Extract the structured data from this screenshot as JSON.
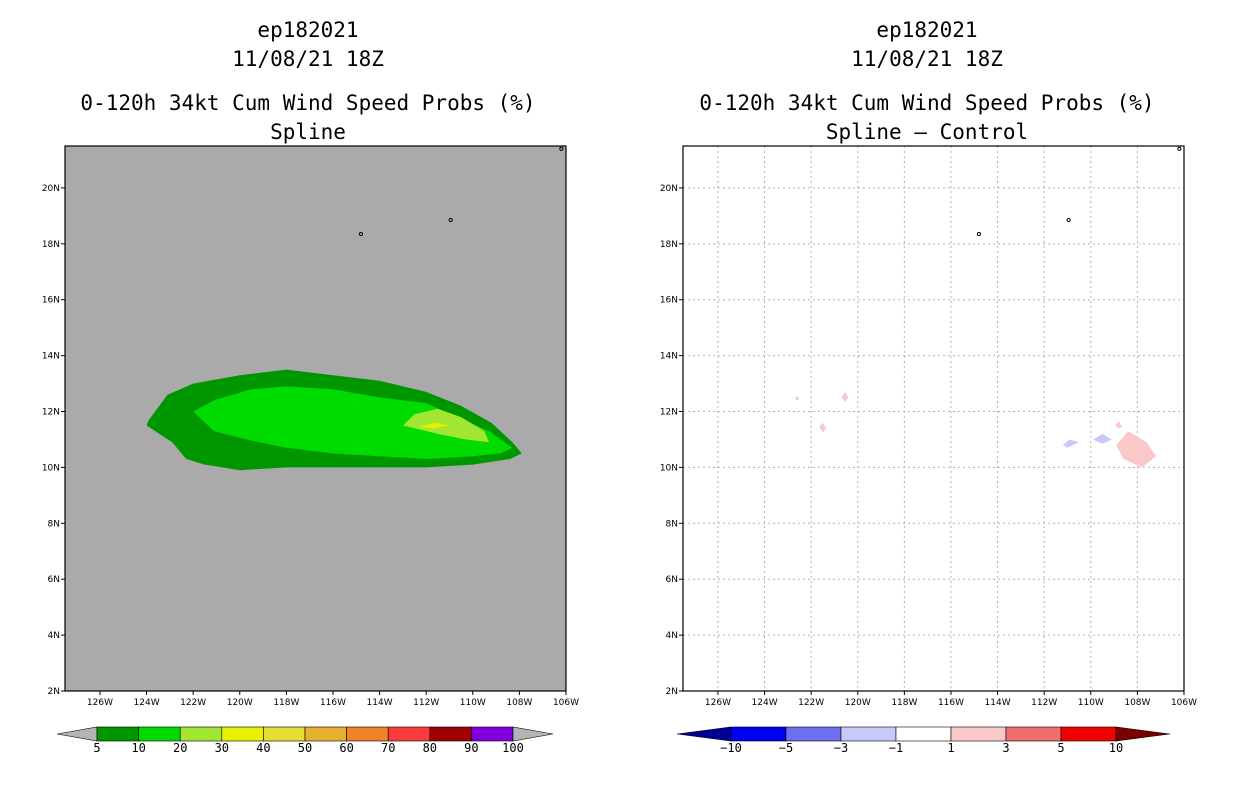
{
  "chart_data": [
    {
      "type": "contour",
      "storm_id": "ep182021",
      "date": "11/08/21 18Z",
      "title": "0-120h 34kt Cum Wind Speed Probs (%)",
      "subtitle": "Spline",
      "x_ticks": [
        "126W",
        "124W",
        "122W",
        "120W",
        "118W",
        "116W",
        "114W",
        "112W",
        "110W",
        "108W",
        "106W"
      ],
      "y_ticks": [
        "2N",
        "4N",
        "6N",
        "8N",
        "10N",
        "12N",
        "14N",
        "16N",
        "18N",
        "20N"
      ],
      "lon_range": [
        -127.5,
        -106
      ],
      "lat_range": [
        2,
        21.5
      ],
      "background_color": "#aaaaaa",
      "colorbar": {
        "labels": [
          "5",
          "10",
          "20",
          "30",
          "40",
          "50",
          "60",
          "70",
          "80",
          "90",
          "100"
        ],
        "colors": [
          "#b4b4b4",
          "#009600",
          "#00dc00",
          "#a0e632",
          "#e6f000",
          "#e6dc32",
          "#e6af2d",
          "#f08228",
          "#fa3c3c",
          "#a00000",
          "#8200dc",
          "#b4b4b4"
        ]
      },
      "contours": [
        {
          "level": 5,
          "color": "#009600",
          "polygon": [
            [
              -123.9,
              11.7
            ],
            [
              -123.1,
              12.6
            ],
            [
              -122.0,
              13.0
            ],
            [
              -120.0,
              13.3
            ],
            [
              -118.0,
              13.5
            ],
            [
              -116.0,
              13.3
            ],
            [
              -114.0,
              13.1
            ],
            [
              -112.0,
              12.7
            ],
            [
              -110.5,
              12.2
            ],
            [
              -109.2,
              11.6
            ],
            [
              -108.3,
              10.9
            ],
            [
              -107.9,
              10.5
            ],
            [
              -108.4,
              10.3
            ],
            [
              -110.0,
              10.1
            ],
            [
              -112.0,
              10.0
            ],
            [
              -114.0,
              10.0
            ],
            [
              -116.0,
              10.0
            ],
            [
              -118.0,
              10.0
            ],
            [
              -120.0,
              9.9
            ],
            [
              -121.5,
              10.1
            ],
            [
              -122.3,
              10.3
            ],
            [
              -122.9,
              10.9
            ],
            [
              -124.0,
              11.5
            ]
          ]
        },
        {
          "level": 10,
          "color": "#00dc00",
          "polygon": [
            [
              -122.0,
              12.0
            ],
            [
              -121.1,
              12.4
            ],
            [
              -119.5,
              12.8
            ],
            [
              -118.0,
              12.9
            ],
            [
              -116.0,
              12.8
            ],
            [
              -114.0,
              12.5
            ],
            [
              -112.0,
              12.3
            ],
            [
              -110.7,
              11.8
            ],
            [
              -109.3,
              11.3
            ],
            [
              -108.3,
              10.7
            ],
            [
              -108.8,
              10.5
            ],
            [
              -110.0,
              10.4
            ],
            [
              -112.0,
              10.3
            ],
            [
              -114.0,
              10.4
            ],
            [
              -116.0,
              10.5
            ],
            [
              -118.0,
              10.7
            ],
            [
              -119.7,
              11.0
            ],
            [
              -121.1,
              11.3
            ]
          ]
        },
        {
          "level": 20,
          "color": "#a0e632",
          "polygon": [
            [
              -113.0,
              11.5
            ],
            [
              -112.5,
              11.9
            ],
            [
              -111.5,
              12.1
            ],
            [
              -110.5,
              11.8
            ],
            [
              -109.5,
              11.3
            ],
            [
              -109.3,
              10.9
            ],
            [
              -110.3,
              11.0
            ],
            [
              -111.5,
              11.2
            ]
          ]
        },
        {
          "level": 30,
          "color": "#e6f000",
          "polygon": [
            [
              -112.3,
              11.45
            ],
            [
              -111.6,
              11.6
            ],
            [
              -111.0,
              11.5
            ],
            [
              -111.7,
              11.4
            ]
          ]
        }
      ],
      "markers": [
        {
          "name": "island-a",
          "lon": -114.8,
          "lat": 18.35
        },
        {
          "name": "island-b",
          "lon": -110.95,
          "lat": 18.85
        },
        {
          "name": "island-c",
          "lon": -106.2,
          "lat": 21.4
        }
      ]
    },
    {
      "type": "contour",
      "storm_id": "ep182021",
      "date": "11/08/21 18Z",
      "title": "0-120h 34kt Cum Wind Speed Probs (%)",
      "subtitle": "Spline – Control",
      "x_ticks": [
        "126W",
        "124W",
        "122W",
        "120W",
        "118W",
        "116W",
        "114W",
        "112W",
        "110W",
        "108W",
        "106W"
      ],
      "y_ticks": [
        "2N",
        "4N",
        "6N",
        "8N",
        "10N",
        "12N",
        "14N",
        "16N",
        "18N",
        "20N"
      ],
      "lon_range": [
        -127.5,
        -106
      ],
      "lat_range": [
        2,
        21.5
      ],
      "background_color": "#ffffff",
      "grid": true,
      "colorbar": {
        "labels": [
          "−10",
          "−5",
          "−3",
          "−1",
          "1",
          "3",
          "5",
          "10"
        ],
        "colors": [
          "#000096",
          "#0000f0",
          "#6e6ef0",
          "#c8c8fa",
          "#ffffff",
          "#fac8c8",
          "#f06e6e",
          "#f00000",
          "#780000"
        ]
      },
      "contours": [
        {
          "level": 1,
          "color": "#fac8c8",
          "polygon": [
            [
              -122.7,
              12.45
            ],
            [
              -122.6,
              12.55
            ],
            [
              -122.5,
              12.45
            ],
            [
              -122.6,
              12.4
            ]
          ]
        },
        {
          "level": 1,
          "color": "#fac8c8",
          "polygon": [
            [
              -120.7,
              12.5
            ],
            [
              -120.55,
              12.7
            ],
            [
              -120.4,
              12.5
            ],
            [
              -120.55,
              12.35
            ]
          ]
        },
        {
          "level": 1,
          "color": "#fac8c8",
          "polygon": [
            [
              -121.65,
              11.45
            ],
            [
              -121.5,
              11.6
            ],
            [
              -121.35,
              11.4
            ],
            [
              -121.5,
              11.25
            ]
          ]
        },
        {
          "level": 1,
          "color": "#fac8c8",
          "polygon": [
            [
              -108.95,
              11.5
            ],
            [
              -108.8,
              11.65
            ],
            [
              -108.65,
              11.45
            ],
            [
              -108.8,
              11.4
            ]
          ]
        },
        {
          "level": 1,
          "color": "#fac8c8",
          "polygon": [
            [
              -108.9,
              10.8
            ],
            [
              -108.4,
              11.3
            ],
            [
              -107.6,
              10.9
            ],
            [
              -107.2,
              10.4
            ],
            [
              -107.8,
              10.0
            ],
            [
              -108.6,
              10.3
            ]
          ]
        },
        {
          "level": -1,
          "color": "#c8c8fa",
          "polygon": [
            [
              -111.2,
              10.8
            ],
            [
              -110.9,
              11.0
            ],
            [
              -110.5,
              10.9
            ],
            [
              -111.0,
              10.7
            ]
          ]
        },
        {
          "level": -1,
          "color": "#c8c8fa",
          "polygon": [
            [
              -109.9,
              11.0
            ],
            [
              -109.5,
              11.2
            ],
            [
              -109.1,
              11.0
            ],
            [
              -109.5,
              10.85
            ]
          ]
        }
      ],
      "markers": [
        {
          "name": "island-a",
          "lon": -114.8,
          "lat": 18.35
        },
        {
          "name": "island-b",
          "lon": -110.95,
          "lat": 18.85
        },
        {
          "name": "island-c",
          "lon": -106.2,
          "lat": 21.4
        }
      ]
    }
  ]
}
